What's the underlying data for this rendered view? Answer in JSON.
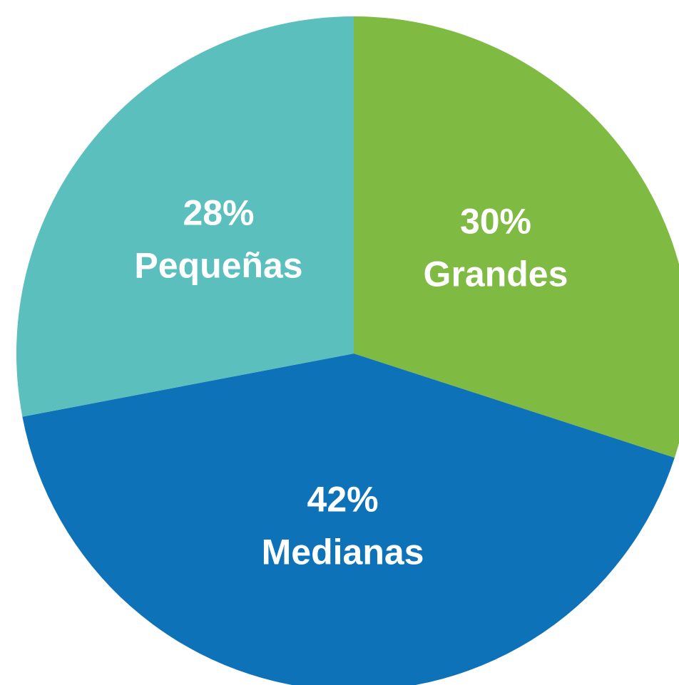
{
  "chart_data": {
    "type": "pie",
    "categories": [
      "Grandes",
      "Medianas",
      "Pequeñas"
    ],
    "values": [
      30,
      42,
      28
    ],
    "value_labels": [
      "30%",
      "42%",
      "28%"
    ],
    "colors": [
      "#7fba42",
      "#0e72b9",
      "#5bbfbe"
    ]
  }
}
